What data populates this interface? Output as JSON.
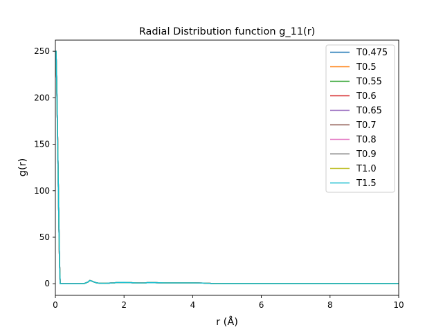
{
  "chart_data": {
    "type": "line",
    "title": "Radial Distribution function g_11(r)",
    "xlabel": "r (Å)",
    "ylabel": "g(r)",
    "xlim": [
      0,
      10
    ],
    "ylim": [
      -12.5,
      262
    ],
    "xticks": [
      0,
      2,
      4,
      6,
      8,
      10
    ],
    "yticks": [
      0,
      50,
      100,
      150,
      200,
      250
    ],
    "grid": false,
    "legend_position": "top-right",
    "series": [
      {
        "name": "T0.475",
        "color": "#1f77b4"
      },
      {
        "name": "T0.5",
        "color": "#ff7f0e"
      },
      {
        "name": "T0.55",
        "color": "#2ca02c"
      },
      {
        "name": "T0.6",
        "color": "#d62728"
      },
      {
        "name": "T0.65",
        "color": "#9467bd"
      },
      {
        "name": "T0.7",
        "color": "#8c564b"
      },
      {
        "name": "T0.8",
        "color": "#e377c2"
      },
      {
        "name": "T0.9",
        "color": "#7f7f7f"
      },
      {
        "name": "T1.0",
        "color": "#bcbd22"
      },
      {
        "name": "T1.5",
        "color": "#17becf"
      }
    ],
    "curve": {
      "x": [
        0.0,
        0.02,
        0.04,
        0.06,
        0.08,
        0.1,
        0.12,
        0.14,
        0.16,
        0.18,
        0.3,
        0.5,
        0.7,
        0.85,
        0.95,
        1.0,
        1.05,
        1.1,
        1.15,
        1.2,
        1.25,
        1.35,
        1.5,
        1.7,
        1.8,
        2.0,
        2.2,
        2.4,
        2.6,
        2.7,
        2.9,
        3.2,
        3.6,
        4.0,
        4.3,
        4.6,
        5.0,
        6.0,
        7.0,
        8.0,
        9.0,
        10.0
      ],
      "y": [
        249,
        250,
        215,
        170,
        120,
        70,
        25,
        0,
        0,
        0,
        0,
        0,
        0,
        0.3,
        1.8,
        3.5,
        3.0,
        2.2,
        1.5,
        1.0,
        0.7,
        0.5,
        0.6,
        0.9,
        1.3,
        1.4,
        1.1,
        0.8,
        0.9,
        1.2,
        1.1,
        0.9,
        0.9,
        0.9,
        0.7,
        0.2,
        0.1,
        0.1,
        0.1,
        0.1,
        0.1,
        0.1
      ]
    }
  }
}
